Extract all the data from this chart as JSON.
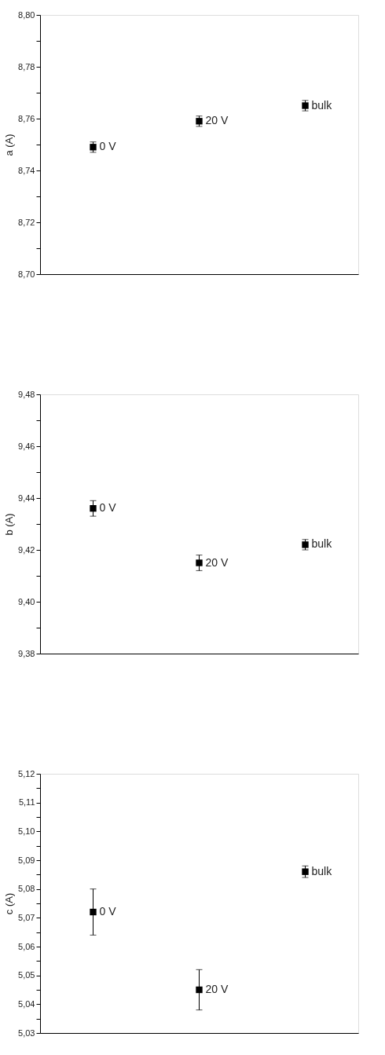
{
  "chart_data": [
    {
      "type": "scatter",
      "ylabel": "a (A)",
      "categories": [
        null,
        null,
        null
      ],
      "marker": "square",
      "tick_labels": "y",
      "grid": false,
      "series": [
        {
          "color": "#000000",
          "values": [
            8.749,
            8.759,
            8.765
          ],
          "errors": [
            0.002,
            0.002,
            0.002
          ]
        }
      ],
      "ylim": [
        8.7,
        8.8
      ],
      "yticks": [
        {
          "value": 8.7,
          "label": "8,70"
        },
        {
          "value": 8.71,
          "label": null
        },
        {
          "value": 8.72,
          "label": "8,72"
        },
        {
          "value": 8.73,
          "label": null
        },
        {
          "value": 8.74,
          "label": "8,74"
        },
        {
          "value": 8.75,
          "label": null
        },
        {
          "value": 8.76,
          "label": "8,76"
        },
        {
          "value": 8.77,
          "label": null
        },
        {
          "value": 8.78,
          "label": "8,78"
        },
        {
          "value": 8.79,
          "label": null
        },
        {
          "value": 8.8,
          "label": "8,80"
        }
      ],
      "annotations": [
        "0 V",
        "20 V",
        "bulk"
      ]
    },
    {
      "type": "scatter",
      "ylabel": "b (A)",
      "categories": [
        null,
        null,
        null
      ],
      "marker": "square",
      "tick_labels": "y",
      "grid": false,
      "series": [
        {
          "color": "#000000",
          "values": [
            9.436,
            9.415,
            9.422
          ],
          "errors": [
            0.003,
            0.003,
            0.002
          ]
        }
      ],
      "ylim": [
        9.38,
        9.48
      ],
      "yticks": [
        {
          "value": 9.38,
          "label": "9,38"
        },
        {
          "value": 9.39,
          "label": null
        },
        {
          "value": 9.4,
          "label": "9,40"
        },
        {
          "value": 9.41,
          "label": null
        },
        {
          "value": 9.42,
          "label": "9,42"
        },
        {
          "value": 9.43,
          "label": null
        },
        {
          "value": 9.44,
          "label": "9,44"
        },
        {
          "value": 9.45,
          "label": null
        },
        {
          "value": 9.46,
          "label": "9,46"
        },
        {
          "value": 9.47,
          "label": null
        },
        {
          "value": 9.48,
          "label": "9,48"
        }
      ],
      "annotations": [
        "0 V",
        "20 V",
        "bulk"
      ]
    },
    {
      "type": "scatter",
      "ylabel": "c (A)",
      "categories": [
        null,
        null,
        null
      ],
      "marker": "square",
      "tick_labels": "y",
      "grid": false,
      "series": [
        {
          "color": "#000000",
          "values": [
            5.072,
            5.045,
            5.086
          ],
          "errors": [
            0.008,
            [
              5.038,
              5.052
            ],
            0.002
          ]
        }
      ],
      "ylim": [
        5.03,
        5.12
      ],
      "yticks": [
        {
          "value": 5.03,
          "label": "5,03"
        },
        {
          "value": 5.035,
          "label": null
        },
        {
          "value": 5.04,
          "label": "5,04"
        },
        {
          "value": 5.045,
          "label": null
        },
        {
          "value": 5.05,
          "label": "5,05"
        },
        {
          "value": 5.055,
          "label": null
        },
        {
          "value": 5.06,
          "label": "5,06"
        },
        {
          "value": 5.065,
          "label": null
        },
        {
          "value": 5.07,
          "label": "5,07"
        },
        {
          "value": 5.075,
          "label": null
        },
        {
          "value": 5.08,
          "label": "5,08"
        },
        {
          "value": 5.085,
          "label": null
        },
        {
          "value": 5.09,
          "label": "5,09"
        },
        {
          "value": 5.095,
          "label": null
        },
        {
          "value": 5.1,
          "label": "5,10"
        },
        {
          "value": 5.105,
          "label": null
        },
        {
          "value": 5.11,
          "label": "5,11"
        },
        {
          "value": 5.115,
          "label": null
        },
        {
          "value": 5.12,
          "label": "5,12"
        }
      ],
      "annotations": [
        "0 V",
        "20 V",
        "bulk"
      ]
    }
  ]
}
